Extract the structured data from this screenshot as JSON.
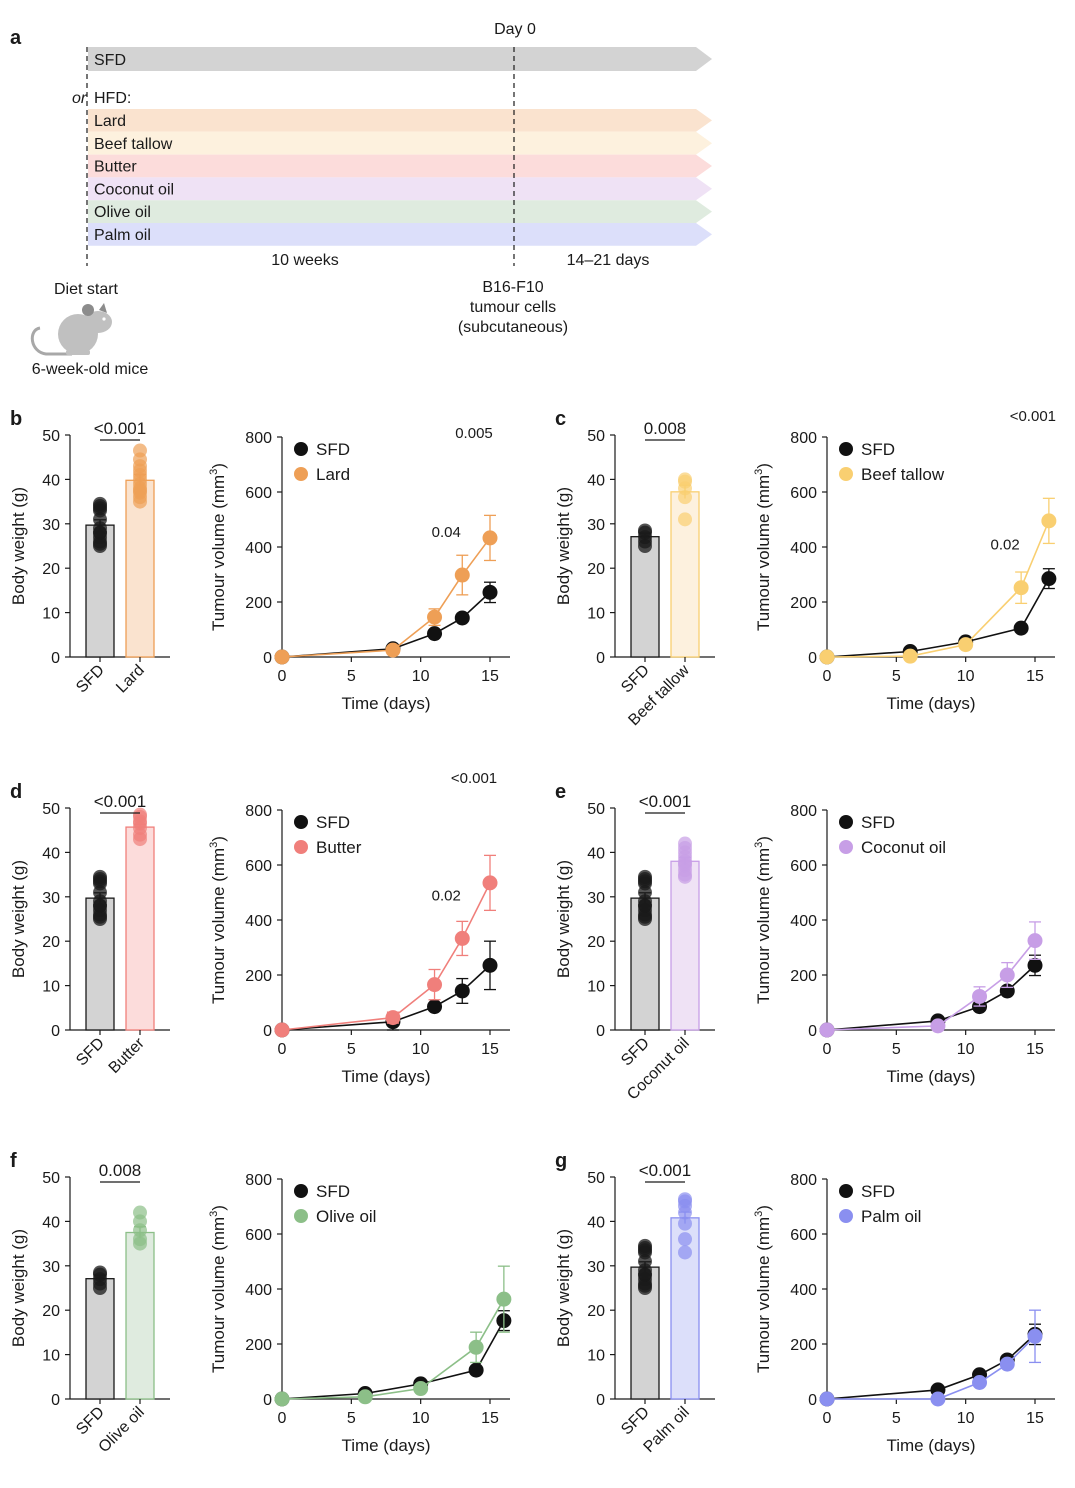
{
  "panel_a": {
    "label": "a",
    "day0_label": "Day 0",
    "sfd_label": "SFD",
    "or_label": "or",
    "hfd_label": "HFD:",
    "diets": [
      {
        "name": "Lard",
        "color": "#fae3cf"
      },
      {
        "name": "Beef tallow",
        "color": "#fdf1de"
      },
      {
        "name": "Butter",
        "color": "#fcdcdb"
      },
      {
        "name": "Coconut oil",
        "color": "#efe2f5"
      },
      {
        "name": "Olive oil",
        "color": "#dfebdf"
      },
      {
        "name": "Palm oil",
        "color": "#dcdffa"
      }
    ],
    "sfd_color": "#d3d3d3",
    "period1_label": "10 weeks",
    "period2_label": "14–21 days",
    "diet_start_label": "Diet start",
    "mice_label": "6-week-old mice",
    "injection_label_lines": [
      "B16-F10",
      "tumour cells",
      "(subcutaneous)"
    ]
  },
  "chart_data": [
    {
      "panel": "b",
      "diet": "Lard",
      "color": "#ee9f56",
      "light": "#fae3cf",
      "bar": {
        "type": "bar",
        "ylabel": "Body weight (g)",
        "ylim": [
          0,
          50
        ],
        "yticks": [
          0,
          10,
          20,
          30,
          40,
          50
        ],
        "categories": [
          "SFD",
          "Lard"
        ],
        "values": [
          29.7,
          39.8
        ],
        "sem": [
          1.2,
          1.3
        ],
        "pvalue": "<0.001",
        "points": [
          [
            25,
            25.5,
            26,
            27,
            28,
            28,
            29,
            31,
            33,
            33.5,
            34,
            34.5
          ],
          [
            35,
            36,
            37,
            37.5,
            38,
            39,
            40,
            41,
            42,
            43,
            44.5,
            46.5
          ]
        ]
      },
      "line": {
        "type": "line",
        "ylabel": "Tumour volume (mm3)",
        "xlabel": "Time (days)",
        "ylim": [
          0,
          800
        ],
        "xlim": [
          0,
          16
        ],
        "yticks": [
          0,
          200,
          400,
          600,
          800
        ],
        "xticks": [
          0,
          5,
          10,
          15
        ],
        "series": [
          {
            "name": "SFD",
            "x": [
              0,
              8,
              11,
              13,
              15
            ],
            "y": [
              0,
              30,
              85,
              142,
              235
            ],
            "err": [
              0,
              5,
              8,
              10,
              37
            ]
          },
          {
            "name": "Lard",
            "x": [
              0,
              8,
              11,
              13,
              15
            ],
            "y": [
              0,
              25,
              145,
              298,
              433
            ],
            "err": [
              0,
              5,
              30,
              72,
              82
            ]
          }
        ],
        "annotations": [
          {
            "x": 13,
            "y": 298,
            "text": "0.04"
          },
          {
            "x": 15,
            "y": 433,
            "text": "0.005"
          }
        ]
      }
    },
    {
      "panel": "c",
      "diet": "Beef tallow",
      "color": "#f9cf71",
      "light": "#fdf1de",
      "bar": {
        "type": "bar",
        "ylabel": "Body weight (g)",
        "ylim": [
          0,
          50
        ],
        "yticks": [
          0,
          10,
          20,
          30,
          40,
          50
        ],
        "categories": [
          "SFD",
          "Beef tallow"
        ],
        "values": [
          27.1,
          37.2
        ],
        "sem": [
          0.8,
          1.5
        ],
        "pvalue": "0.008",
        "points": [
          [
            25,
            26,
            27,
            28,
            28.5
          ],
          [
            31,
            36,
            38,
            39.5,
            40
          ]
        ]
      },
      "line": {
        "type": "line",
        "ylabel": "Tumour volume (mm3)",
        "xlabel": "Time (days)",
        "ylim": [
          0,
          800
        ],
        "xlim": [
          0,
          16
        ],
        "yticks": [
          0,
          200,
          400,
          600,
          800
        ],
        "xticks": [
          0,
          5,
          10,
          15
        ],
        "series": [
          {
            "name": "SFD",
            "x": [
              0,
              6,
              10,
              14,
              16
            ],
            "y": [
              0,
              20,
              55,
              105,
              285
            ],
            "err": [
              0,
              4,
              6,
              8,
              36
            ]
          },
          {
            "name": "Beef tallow",
            "x": [
              0,
              6,
              10,
              14,
              16
            ],
            "y": [
              0,
              3,
              45,
              252,
              495
            ],
            "err": [
              0,
              3,
              8,
              57,
              82
            ]
          }
        ],
        "annotations": [
          {
            "x": 14,
            "y": 252,
            "text": "0.02"
          },
          {
            "x": 16,
            "y": 495,
            "text": "<0.001"
          }
        ]
      }
    },
    {
      "panel": "d",
      "diet": "Butter",
      "color": "#f07f7b",
      "light": "#fcdcdb",
      "bar": {
        "type": "bar",
        "ylabel": "Body weight (g)",
        "ylim": [
          0,
          50
        ],
        "yticks": [
          0,
          10,
          20,
          30,
          40,
          50
        ],
        "categories": [
          "SFD",
          "Butter"
        ],
        "values": [
          29.7,
          45.7
        ],
        "sem": [
          1.2,
          0.6
        ],
        "pvalue": "<0.001",
        "points": [
          [
            25,
            25.5,
            26,
            27,
            28,
            28,
            29,
            31,
            33,
            33.5,
            34,
            34.5
          ],
          [
            43,
            44,
            45.5,
            46.5,
            47,
            48,
            48.5
          ]
        ]
      },
      "line": {
        "type": "line",
        "ylabel": "Tumour volume (mm3)",
        "xlabel": "Time (days)",
        "ylim": [
          0,
          800
        ],
        "xlim": [
          0,
          16
        ],
        "yticks": [
          0,
          200,
          400,
          600,
          800
        ],
        "xticks": [
          0,
          5,
          10,
          15
        ],
        "series": [
          {
            "name": "SFD",
            "x": [
              0,
              8,
              11,
              13,
              15
            ],
            "y": [
              0,
              30,
              85,
              142,
              235
            ],
            "err": [
              0,
              30,
              8,
              45,
              88
            ]
          },
          {
            "name": "Butter",
            "x": [
              0,
              8,
              11,
              13,
              15
            ],
            "y": [
              0,
              45,
              165,
              333,
              535
            ],
            "err": [
              0,
              20,
              55,
              62,
              100
            ]
          }
        ],
        "annotations": [
          {
            "x": 13,
            "y": 333,
            "text": "0.02"
          },
          {
            "x": 15,
            "y": 535,
            "text": "<0.001"
          }
        ]
      }
    },
    {
      "panel": "e",
      "diet": "Coconut oil",
      "color": "#c79ee6",
      "light": "#efe2f5",
      "bar": {
        "type": "bar",
        "ylabel": "Body weight (g)",
        "ylim": [
          0,
          50
        ],
        "yticks": [
          0,
          10,
          20,
          30,
          40,
          50
        ],
        "categories": [
          "SFD",
          "Coconut oil"
        ],
        "values": [
          29.7,
          38.0
        ],
        "sem": [
          1.2,
          0.9
        ],
        "pvalue": "<0.001",
        "points": [
          [
            25,
            25.5,
            26,
            27,
            28,
            28,
            29,
            31,
            33,
            33.5,
            34,
            34.5
          ],
          [
            34.5,
            35,
            36,
            37,
            37.5,
            38,
            39,
            40,
            41,
            42
          ]
        ]
      },
      "line": {
        "type": "line",
        "ylabel": "Tumour volume (mm3)",
        "xlabel": "Time (days)",
        "ylim": [
          0,
          800
        ],
        "xlim": [
          0,
          16
        ],
        "yticks": [
          0,
          200,
          400,
          600,
          800
        ],
        "xticks": [
          0,
          5,
          10,
          15
        ],
        "series": [
          {
            "name": "SFD",
            "x": [
              0,
              8,
              11,
              13,
              15
            ],
            "y": [
              0,
              33,
              85,
              142,
              235
            ],
            "err": [
              0,
              5,
              8,
              10,
              37
            ]
          },
          {
            "name": "Coconut oil",
            "x": [
              0,
              8,
              11,
              13,
              15
            ],
            "y": [
              0,
              15,
              122,
              200,
              325
            ],
            "err": [
              0,
              5,
              35,
              45,
              68
            ]
          }
        ],
        "annotations": []
      }
    },
    {
      "panel": "f",
      "diet": "Olive oil",
      "color": "#8cbf88",
      "light": "#dfebdf",
      "bar": {
        "type": "bar",
        "ylabel": "Body weight (g)",
        "ylim": [
          0,
          50
        ],
        "yticks": [
          0,
          10,
          20,
          30,
          40,
          50
        ],
        "categories": [
          "SFD",
          "Olive oil"
        ],
        "values": [
          27.1,
          37.5
        ],
        "sem": [
          0.8,
          1.3
        ],
        "pvalue": "0.008",
        "points": [
          [
            25,
            26,
            27,
            28,
            28.5
          ],
          [
            35,
            36,
            38,
            40,
            42
          ]
        ]
      },
      "line": {
        "type": "line",
        "ylabel": "Tumour volume (mm3)",
        "xlabel": "Time (days)",
        "ylim": [
          0,
          800
        ],
        "xlim": [
          0,
          16
        ],
        "yticks": [
          0,
          200,
          400,
          600,
          800
        ],
        "xticks": [
          0,
          5,
          10,
          15
        ],
        "series": [
          {
            "name": "SFD",
            "x": [
              0,
              6,
              10,
              14,
              16
            ],
            "y": [
              0,
              20,
              55,
              105,
              285
            ],
            "err": [
              0,
              4,
              6,
              8,
              36
            ]
          },
          {
            "name": "Olive oil",
            "x": [
              0,
              6,
              10,
              14,
              16
            ],
            "y": [
              0,
              8,
              38,
              188,
              363
            ],
            "err": [
              0,
              4,
              8,
              55,
              120
            ]
          }
        ],
        "annotations": []
      }
    },
    {
      "panel": "g",
      "diet": "Palm oil",
      "color": "#8a8ff0",
      "light": "#dcdffa",
      "bar": {
        "type": "bar",
        "ylabel": "Body weight (g)",
        "ylim": [
          0,
          50
        ],
        "yticks": [
          0,
          10,
          20,
          30,
          40,
          50
        ],
        "categories": [
          "SFD",
          "Palm oil"
        ],
        "values": [
          29.7,
          40.8
        ],
        "sem": [
          1.2,
          1.3
        ],
        "pvalue": "<0.001",
        "points": [
          [
            25,
            25.5,
            26,
            27,
            28,
            28,
            29,
            31,
            33,
            33.5,
            34,
            34.5
          ],
          [
            33,
            36,
            39.5,
            42,
            43.5,
            44.5,
            45
          ]
        ]
      },
      "line": {
        "type": "line",
        "ylabel": "Tumour volume (mm3)",
        "xlabel": "Time (days)",
        "ylim": [
          0,
          800
        ],
        "xlim": [
          0,
          16
        ],
        "yticks": [
          0,
          200,
          400,
          600,
          800
        ],
        "xticks": [
          0,
          5,
          10,
          15
        ],
        "series": [
          {
            "name": "SFD",
            "x": [
              0,
              8,
              11,
              13,
              15
            ],
            "y": [
              0,
              33,
              88,
              142,
              235
            ],
            "err": [
              0,
              5,
              8,
              10,
              37
            ]
          },
          {
            "name": "Palm oil",
            "x": [
              0,
              8,
              11,
              13,
              15
            ],
            "y": [
              0,
              0,
              60,
              127,
              228
            ],
            "err": [
              0,
              3,
              8,
              10,
              95
            ]
          }
        ],
        "annotations": []
      }
    }
  ]
}
